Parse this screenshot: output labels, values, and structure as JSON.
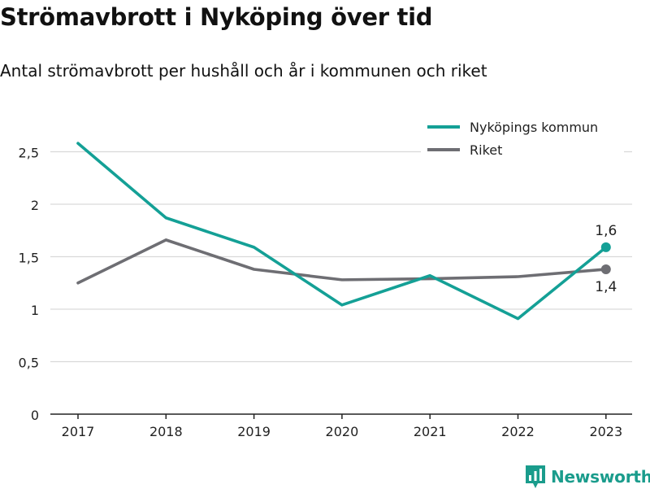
{
  "title": "Strömavbrott i Nyköping över tid",
  "subtitle": "Antal strömavbrott per hushåll och år i kommunen och riket",
  "brand": "Newsworthy",
  "colors": {
    "kommun": "#14a096",
    "riket": "#6e6e73",
    "grid": "#d9d9d9",
    "axis": "#222222",
    "brand": "#1a9c8c"
  },
  "chart_data": {
    "type": "line",
    "title": "",
    "xlabel": "",
    "ylabel": "",
    "x": [
      "2017",
      "2018",
      "2019",
      "2020",
      "2021",
      "2022",
      "2023"
    ],
    "y_ticks": [
      "0",
      "0,5",
      "1",
      "1,5",
      "2",
      "2,5"
    ],
    "ylim": [
      0,
      2.75
    ],
    "grid": true,
    "legend_position": "top-right",
    "series": [
      {
        "name": "Nyköpings kommun",
        "values": [
          2.58,
          1.87,
          1.59,
          1.04,
          1.32,
          0.91,
          1.59
        ]
      },
      {
        "name": "Riket",
        "values": [
          1.25,
          1.66,
          1.38,
          1.28,
          1.29,
          1.31,
          1.38
        ]
      }
    ],
    "annotations": [
      {
        "series": 0,
        "index": 6,
        "text": "1,6"
      },
      {
        "series": 1,
        "index": 6,
        "text": "1,4"
      }
    ]
  }
}
